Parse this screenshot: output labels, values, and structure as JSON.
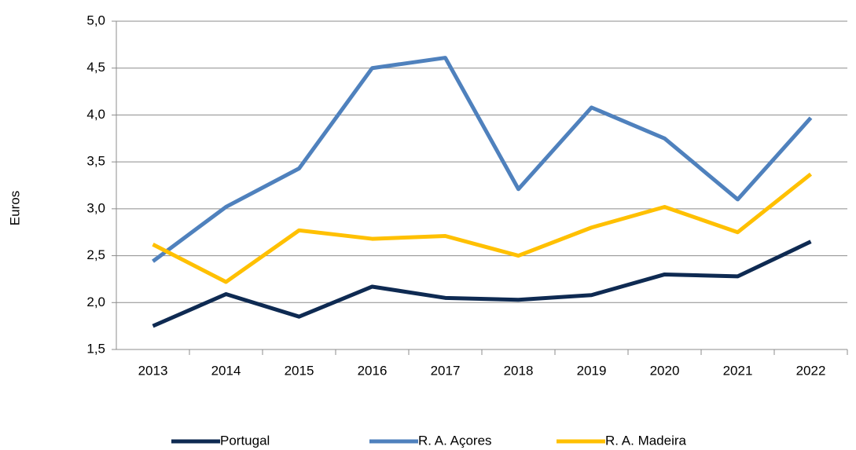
{
  "chart_data": {
    "type": "line",
    "y_label": "Euros",
    "categories": [
      "2013",
      "2014",
      "2015",
      "2016",
      "2017",
      "2018",
      "2019",
      "2020",
      "2021",
      "2022"
    ],
    "series": [
      {
        "name": "Portugal",
        "color": "#0e2a52",
        "values": [
          1.75,
          2.09,
          1.85,
          2.17,
          2.05,
          2.03,
          2.08,
          2.3,
          2.28,
          2.65
        ]
      },
      {
        "name": "R. A. Açores",
        "color": "#4f81bd",
        "values": [
          2.44,
          3.02,
          3.43,
          4.5,
          4.61,
          3.21,
          4.08,
          3.75,
          3.1,
          3.97
        ]
      },
      {
        "name": "R. A. Madeira",
        "color": "#ffc000",
        "values": [
          2.62,
          2.22,
          2.77,
          2.68,
          2.71,
          2.5,
          2.8,
          3.02,
          2.75,
          3.37
        ]
      }
    ],
    "ylim": [
      1.5,
      5.0
    ],
    "yticks": [
      {
        "value": 1.5,
        "label": "1,5"
      },
      {
        "value": 2.0,
        "label": "2,0"
      },
      {
        "value": 2.5,
        "label": "2,5"
      },
      {
        "value": 3.0,
        "label": "3,0"
      },
      {
        "value": 3.5,
        "label": "3,5"
      },
      {
        "value": 4.0,
        "label": "4,0"
      },
      {
        "value": 4.5,
        "label": "4,5"
      },
      {
        "value": 5.0,
        "label": "5,0"
      }
    ],
    "grid": true,
    "legend": "bottom"
  }
}
